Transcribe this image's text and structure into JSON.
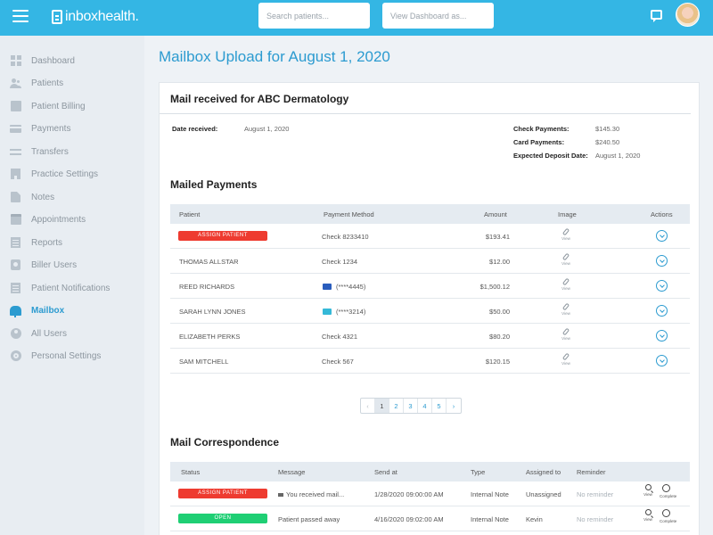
{
  "header": {
    "logo_text": "inboxhealth.",
    "search_placeholder": "Search patients...",
    "view_dashboard_placeholder": "View Dashboard as..."
  },
  "sidebar": {
    "items": [
      {
        "label": "Dashboard",
        "icon": "dashboard-icon"
      },
      {
        "label": "Patients",
        "icon": "patients-icon"
      },
      {
        "label": "Patient Billing",
        "icon": "billing-icon"
      },
      {
        "label": "Payments",
        "icon": "credit-card-icon"
      },
      {
        "label": "Transfers",
        "icon": "transfer-icon"
      },
      {
        "label": "Practice Settings",
        "icon": "building-icon"
      },
      {
        "label": "Notes",
        "icon": "note-icon"
      },
      {
        "label": "Appointments",
        "icon": "calendar-icon"
      },
      {
        "label": "Reports",
        "icon": "report-icon"
      },
      {
        "label": "Biller Users",
        "icon": "badge-icon"
      },
      {
        "label": "Patient Notifications",
        "icon": "notification-icon"
      },
      {
        "label": "Mailbox",
        "icon": "mailbox-icon",
        "active": true
      },
      {
        "label": "All Users",
        "icon": "users-icon"
      },
      {
        "label": "Personal Settings",
        "icon": "gear-icon"
      }
    ]
  },
  "page": {
    "title": "Mailbox Upload for August 1, 2020"
  },
  "mail_card": {
    "title": "Mail received for ABC Dermatology",
    "date_received_label": "Date received:",
    "date_received_value": "August 1, 2020",
    "check_payments_label": "Check Payments:",
    "check_payments_value": "$145.30",
    "card_payments_label": "Card Payments:",
    "card_payments_value": "$240.50",
    "expected_deposit_label": "Expected Deposit Date:",
    "expected_deposit_value": "August 1, 2020"
  },
  "mailed_payments": {
    "title": "Mailed Payments",
    "columns": [
      "Patient",
      "Payment Method",
      "Amount",
      "Image",
      "Actions"
    ],
    "image_label": "View",
    "rows": [
      {
        "patient": "ASSIGN PATIENT",
        "method": "Check 8233410",
        "amount": "$193.41",
        "patient_is_tag": true
      },
      {
        "patient": "THOMAS ALLSTAR",
        "method": "Check 1234",
        "amount": "$12.00"
      },
      {
        "patient": "REED RICHARDS",
        "method": "(****4445)",
        "amount": "$1,500.12",
        "card": "visa"
      },
      {
        "patient": "SARAH LYNN JONES",
        "method": "(****3214)",
        "amount": "$50.00",
        "card": "amex"
      },
      {
        "patient": "ELIZABETH PERKS",
        "method": "Check 4321",
        "amount": "$80.20"
      },
      {
        "patient": "SAM MITCHELL",
        "method": "Check 567",
        "amount": "$120.15"
      }
    ]
  },
  "pagination": {
    "prev": "‹",
    "pages": [
      "1",
      "2",
      "3",
      "4",
      "5"
    ],
    "next": "›",
    "current": "1"
  },
  "mail_correspondence": {
    "title": "Mail Correspondence",
    "columns": [
      "Status",
      "Message",
      "Send at",
      "Type",
      "Assigned to",
      "Reminder"
    ],
    "view_label": "View",
    "complete_label": "Complete",
    "rows": [
      {
        "status": "ASSIGN PATIENT",
        "status_color": "#ee3b30",
        "message": "You received mail...",
        "send_at": "1/28/2020 09:00:00 AM",
        "type": "Internal Note",
        "assigned": "Unassigned",
        "reminder": "No reminder"
      },
      {
        "status": "OPEN",
        "status_color": "#1fcf74",
        "message": "Patient passed away",
        "send_at": "4/16/2020 09:02:00 AM",
        "type": "Internal Note",
        "assigned": "Kevin",
        "reminder": "No reminder"
      }
    ]
  },
  "colors": {
    "header": "#34b6e4",
    "accent": "#2c9bd0",
    "sidebar_bg": "#e8edf2"
  }
}
